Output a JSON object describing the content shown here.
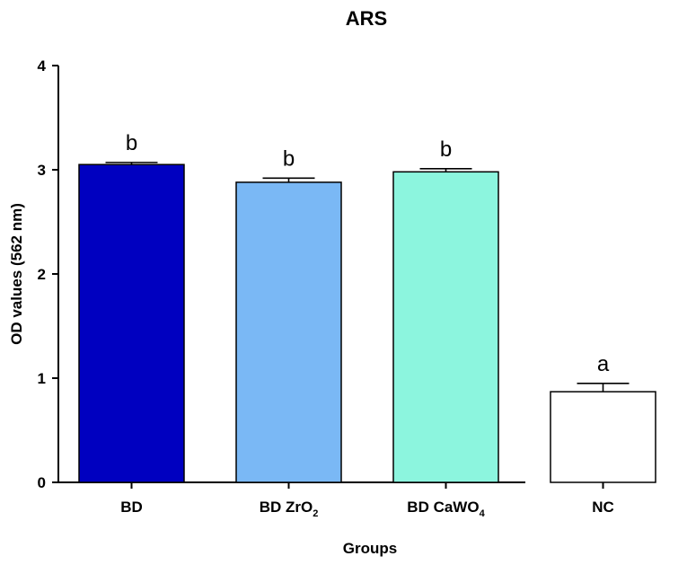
{
  "chart_data": {
    "type": "bar",
    "title": "ARS",
    "xlabel": "Groups",
    "ylabel": "OD values (562 nm)",
    "ylim": [
      0,
      4
    ],
    "yticks": [
      0,
      1,
      2,
      3,
      4
    ],
    "grid": false,
    "categories": [
      {
        "main": "BD",
        "sub": ""
      },
      {
        "main": "BD ZrO",
        "sub": "2"
      },
      {
        "main": "BD CaWO",
        "sub": "4"
      },
      {
        "main": "NC",
        "sub": ""
      }
    ],
    "values": [
      3.05,
      2.88,
      2.98,
      0.87
    ],
    "errors": [
      0.02,
      0.04,
      0.03,
      0.08
    ],
    "annotations": [
      "b",
      "b",
      "b",
      "a"
    ],
    "colors": [
      "#0000c0",
      "#7ab8f5",
      "#8cf5de",
      "#ffffff"
    ]
  }
}
